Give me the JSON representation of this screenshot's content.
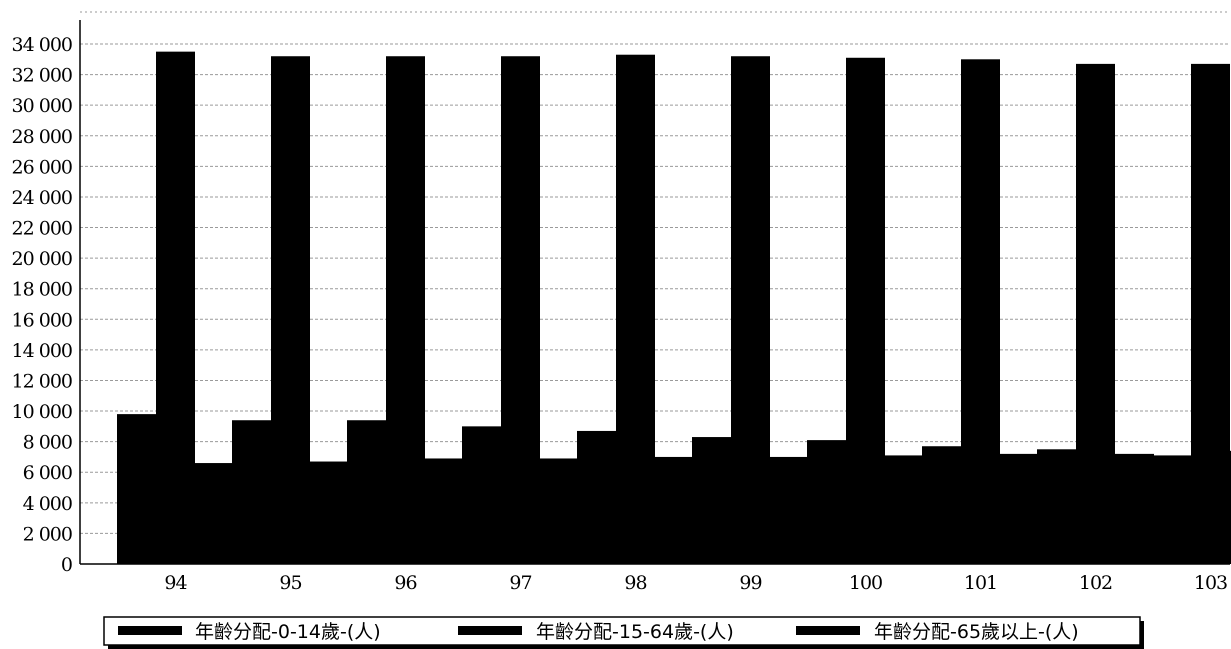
{
  "chart_data": {
    "type": "bar",
    "categories": [
      "94",
      "95",
      "96",
      "97",
      "98",
      "99",
      "100",
      "101",
      "102",
      "103"
    ],
    "series": [
      {
        "name": "年齡分配-0-14歲-(人)",
        "values": [
          9800,
          9400,
          9400,
          9000,
          8700,
          8300,
          8100,
          7700,
          7500,
          7100
        ]
      },
      {
        "name": "年齡分配-15-64歲-(人)",
        "values": [
          33500,
          33200,
          33200,
          33200,
          33300,
          33200,
          33100,
          33000,
          32700,
          32700
        ]
      },
      {
        "name": "年齡分配-65歲以上-(人)",
        "values": [
          6600,
          6700,
          6900,
          6900,
          7000,
          7000,
          7100,
          7200,
          7200,
          7400
        ]
      }
    ],
    "yticks": [
      "0",
      "2 000",
      "4 000",
      "6 000",
      "8 000",
      "10 000",
      "12 000",
      "14 000",
      "16 000",
      "18 000",
      "20 000",
      "22 000",
      "24 000",
      "26 000",
      "28 000",
      "30 000",
      "32 000",
      "34 000"
    ],
    "ylim": [
      0,
      34000
    ],
    "grid": true,
    "legend_position": "bottom",
    "colors": {
      "bars": "#000000",
      "grid": "#9a9a9a",
      "background": "#ffffff"
    }
  }
}
